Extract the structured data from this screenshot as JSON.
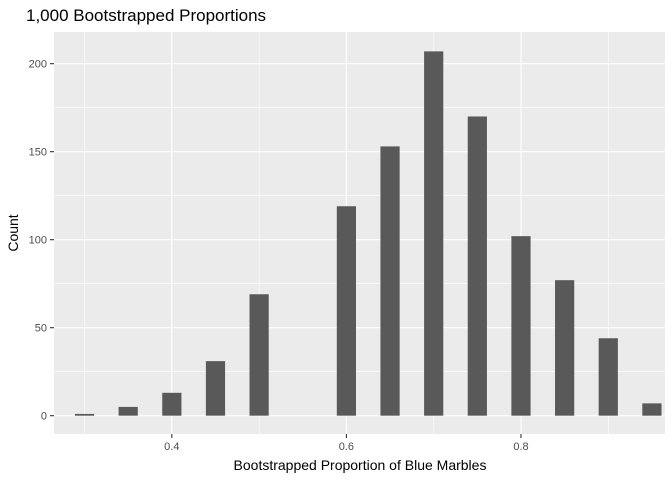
{
  "chart_data": {
    "type": "bar",
    "title": "1,000 Bootstrapped Proportions",
    "xlabel": "Bootstrapped Proportion of Blue Marbles",
    "ylabel": "Count",
    "xlim": [
      0.265,
      0.965
    ],
    "ylim": [
      -10.4,
      218
    ],
    "x_ticks": [
      0.4,
      0.6,
      0.8
    ],
    "x_tick_labels": [
      "0.4",
      "0.6",
      "0.8"
    ],
    "y_ticks": [
      0,
      50,
      100,
      150,
      200
    ],
    "y_tick_labels": [
      "0",
      "50",
      "100",
      "150",
      "200"
    ],
    "bar_width": 0.022,
    "grid": true,
    "legend": "none",
    "bar_color": "#595959",
    "panel_color": "#ebebeb",
    "x": [
      0.3,
      0.35,
      0.4,
      0.45,
      0.5,
      0.55,
      0.6,
      0.65,
      0.7,
      0.75,
      0.8,
      0.85,
      0.9,
      0.95
    ],
    "values": [
      1,
      5,
      13,
      31,
      69,
      0,
      119,
      153,
      207,
      170,
      102,
      77,
      44,
      7
    ]
  }
}
